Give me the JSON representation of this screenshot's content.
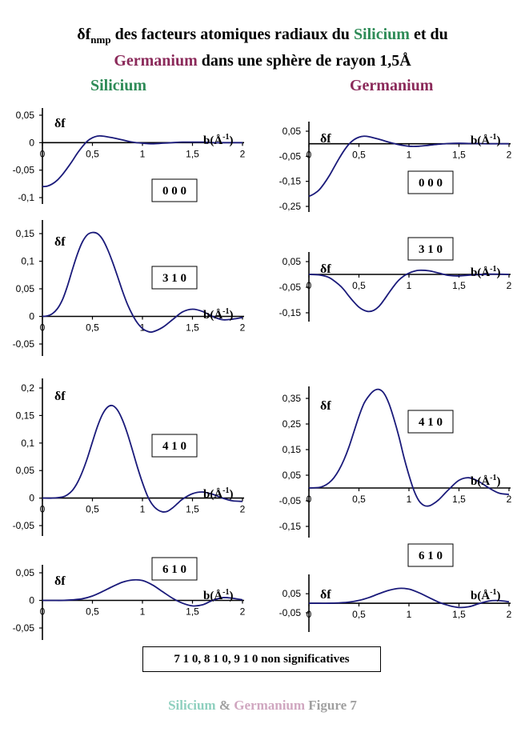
{
  "title": {
    "prefix": "δf",
    "subscript": "nmp",
    "part1": " des facteurs atomiques radiaux du ",
    "silicium": "Silicium",
    "part2": "  et du",
    "germanium": "Germanium",
    "part3": " dans une sphère de rayon 1,5Å"
  },
  "columns": {
    "left": "Silicium",
    "right": "Germanium"
  },
  "colors": {
    "curve": "#1a1a7a",
    "silicium": "#2e8b57",
    "germanium": "#8b2a5a"
  },
  "chart_data": [
    {
      "type": "line",
      "element": "Silicium",
      "label": "0 0 0",
      "ylabel": "δf",
      "xlabel_base": "b(Å",
      "xlabel_sup": "-1",
      "xlabel_end": ")",
      "xlim": [
        0,
        2
      ],
      "ylim": [
        -0.1,
        0.05
      ],
      "y_ticks": [
        0.05,
        0,
        -0.05,
        -0.1
      ],
      "y_tick_labels": [
        "0,05",
        "0",
        "-0,05",
        "-0,1"
      ],
      "x_ticks": [
        0,
        0.5,
        1,
        1.5,
        2
      ],
      "x_tick_labels": [
        "0",
        "0,5",
        "1",
        "1,5",
        "2"
      ],
      "x": [
        0,
        0.05,
        0.1,
        0.15,
        0.2,
        0.25,
        0.3,
        0.35,
        0.4,
        0.45,
        0.5,
        0.55,
        0.6,
        0.7,
        0.8,
        0.9,
        1.0,
        1.1,
        1.2,
        1.3,
        1.4,
        1.5,
        1.6,
        1.7,
        1.8,
        1.9,
        2.0
      ],
      "y": [
        -0.08,
        -0.079,
        -0.075,
        -0.068,
        -0.058,
        -0.046,
        -0.033,
        -0.019,
        -0.007,
        0.003,
        0.009,
        0.012,
        0.012,
        0.009,
        0.005,
        0.001,
        -0.001,
        -0.002,
        -0.001,
        0.0,
        0.001,
        0.001,
        0.001,
        0.0,
        0.0,
        0.0,
        0.0
      ]
    },
    {
      "type": "line",
      "element": "Silicium",
      "label": "3 1 0",
      "ylabel": "δf",
      "xlabel_base": "b(Å",
      "xlabel_sup": "-1",
      "xlabel_end": ")",
      "xlim": [
        0,
        2
      ],
      "ylim": [
        -0.05,
        0.15
      ],
      "y_ticks": [
        0.15,
        0.1,
        0.05,
        0,
        -0.05
      ],
      "y_tick_labels": [
        "0,15",
        "0,1",
        "0,05",
        "0",
        "-0,05"
      ],
      "x_ticks": [
        0,
        0.5,
        1,
        1.5,
        2
      ],
      "x_tick_labels": [
        "0",
        "0,5",
        "1",
        "1,5",
        "2"
      ],
      "x": [
        0,
        0.05,
        0.1,
        0.15,
        0.2,
        0.25,
        0.3,
        0.35,
        0.4,
        0.45,
        0.5,
        0.55,
        0.6,
        0.65,
        0.7,
        0.75,
        0.8,
        0.85,
        0.9,
        0.95,
        1.0,
        1.05,
        1.1,
        1.2,
        1.3,
        1.4,
        1.5,
        1.6,
        1.7,
        1.8,
        1.9,
        2.0
      ],
      "y": [
        0,
        0.001,
        0.005,
        0.014,
        0.03,
        0.055,
        0.085,
        0.113,
        0.135,
        0.148,
        0.152,
        0.15,
        0.14,
        0.122,
        0.099,
        0.073,
        0.046,
        0.022,
        0.003,
        -0.012,
        -0.022,
        -0.027,
        -0.028,
        -0.02,
        -0.006,
        0.008,
        0.013,
        0.009,
        0.0,
        -0.006,
        -0.005,
        -0.002
      ]
    },
    {
      "type": "line",
      "element": "Silicium",
      "label": "4 1 0",
      "ylabel": "δf",
      "xlabel_base": "b(Å",
      "xlabel_sup": "-1",
      "xlabel_end": ")",
      "xlim": [
        0,
        2
      ],
      "ylim": [
        -0.05,
        0.2
      ],
      "y_ticks": [
        0.2,
        0.15,
        0.1,
        0.05,
        0,
        -0.05
      ],
      "y_tick_labels": [
        "0,2",
        "0,15",
        "0,1",
        "0,05",
        "0",
        "-0,05"
      ],
      "x_ticks": [
        0,
        0.5,
        1,
        1.5,
        2
      ],
      "x_tick_labels": [
        "0",
        "0,5",
        "1",
        "1,5",
        "2"
      ],
      "x": [
        0,
        0.1,
        0.2,
        0.25,
        0.3,
        0.35,
        0.4,
        0.45,
        0.5,
        0.55,
        0.6,
        0.65,
        0.7,
        0.75,
        0.8,
        0.85,
        0.9,
        0.95,
        1.0,
        1.05,
        1.1,
        1.15,
        1.2,
        1.25,
        1.3,
        1.35,
        1.4,
        1.5,
        1.6,
        1.7,
        1.8,
        1.9,
        2.0
      ],
      "y": [
        0,
        0.0,
        0.002,
        0.006,
        0.014,
        0.028,
        0.048,
        0.073,
        0.102,
        0.13,
        0.152,
        0.165,
        0.168,
        0.16,
        0.142,
        0.117,
        0.087,
        0.056,
        0.028,
        0.004,
        -0.012,
        -0.021,
        -0.025,
        -0.024,
        -0.018,
        -0.01,
        -0.002,
        0.008,
        0.011,
        0.007,
        0.0,
        -0.005,
        -0.006
      ]
    },
    {
      "type": "line",
      "element": "Silicium",
      "label": "6 1 0",
      "ylabel": "δf",
      "xlabel_base": "b(Å",
      "xlabel_sup": "-1",
      "xlabel_end": ")",
      "xlim": [
        0,
        2
      ],
      "ylim": [
        -0.05,
        0.05
      ],
      "y_ticks": [
        0.05,
        0,
        -0.05
      ],
      "y_tick_labels": [
        "0,05",
        "0",
        "-0,05"
      ],
      "x_ticks": [
        0,
        0.5,
        1,
        1.5,
        2
      ],
      "x_tick_labels": [
        "0",
        "0,5",
        "1",
        "1,5",
        "2"
      ],
      "x": [
        0,
        0.1,
        0.2,
        0.3,
        0.4,
        0.5,
        0.6,
        0.7,
        0.8,
        0.9,
        1.0,
        1.1,
        1.2,
        1.3,
        1.4,
        1.5,
        1.6,
        1.7,
        1.8,
        1.9,
        2.0
      ],
      "y": [
        0,
        0.0,
        0.0,
        0.001,
        0.003,
        0.008,
        0.016,
        0.025,
        0.033,
        0.037,
        0.036,
        0.028,
        0.016,
        0.004,
        -0.005,
        -0.01,
        -0.008,
        0.0,
        0.005,
        0.004,
        0.001
      ]
    },
    {
      "type": "line",
      "element": "Germanium",
      "label": "0 0 0",
      "ylabel": "δf",
      "xlabel_base": "b(Å",
      "xlabel_sup": "-1",
      "xlabel_end": ")",
      "xlim": [
        0,
        2
      ],
      "ylim": [
        -0.25,
        0.05
      ],
      "y_ticks": [
        0.05,
        -0.05,
        -0.15,
        -0.25
      ],
      "y_tick_labels": [
        "0,05",
        "-0,05",
        "-0,15",
        "-0,25"
      ],
      "x_ticks": [
        0,
        0.5,
        1,
        1.5,
        2
      ],
      "x_tick_labels": [
        "0",
        "0,5",
        "1",
        "1,5",
        "2"
      ],
      "x": [
        0,
        0.05,
        0.1,
        0.15,
        0.2,
        0.25,
        0.3,
        0.35,
        0.4,
        0.45,
        0.5,
        0.55,
        0.6,
        0.7,
        0.8,
        0.9,
        1.0,
        1.1,
        1.2,
        1.3,
        1.4,
        1.5,
        1.6,
        1.8,
        2.0
      ],
      "y": [
        -0.21,
        -0.2,
        -0.185,
        -0.16,
        -0.13,
        -0.095,
        -0.06,
        -0.028,
        -0.002,
        0.016,
        0.026,
        0.03,
        0.028,
        0.018,
        0.006,
        -0.004,
        -0.01,
        -0.01,
        -0.006,
        -0.002,
        0.001,
        0.002,
        0.001,
        0.0,
        0.0
      ]
    },
    {
      "type": "line",
      "element": "Germanium",
      "label": "3 1 0",
      "ylabel": "δf",
      "xlabel_base": "b(Å",
      "xlabel_sup": "-1",
      "xlabel_end": ")",
      "xlim": [
        0,
        2
      ],
      "ylim": [
        -0.15,
        0.05
      ],
      "y_ticks": [
        0.05,
        -0.05,
        -0.15
      ],
      "y_tick_labels": [
        "0,05",
        "-0,05",
        "-0,15"
      ],
      "x_ticks": [
        0,
        0.5,
        1,
        1.5,
        2
      ],
      "x_tick_labels": [
        "0",
        "0,5",
        "1",
        "1,5",
        "2"
      ],
      "x": [
        0,
        0.1,
        0.2,
        0.3,
        0.35,
        0.4,
        0.45,
        0.5,
        0.55,
        0.6,
        0.65,
        0.7,
        0.75,
        0.8,
        0.85,
        0.9,
        0.95,
        1.0,
        1.05,
        1.1,
        1.2,
        1.3,
        1.4,
        1.5,
        1.6,
        1.8,
        2.0
      ],
      "y": [
        0,
        -0.002,
        -0.012,
        -0.04,
        -0.06,
        -0.085,
        -0.108,
        -0.128,
        -0.14,
        -0.145,
        -0.14,
        -0.125,
        -0.1,
        -0.072,
        -0.045,
        -0.022,
        -0.006,
        0.005,
        0.012,
        0.016,
        0.014,
        0.005,
        -0.004,
        -0.006,
        -0.003,
        0.001,
        0.0
      ]
    },
    {
      "type": "line",
      "element": "Germanium",
      "label": "4 1 0",
      "ylabel": "δf",
      "xlabel_base": "b(Å",
      "xlabel_sup": "-1",
      "xlabel_end": ")",
      "xlim": [
        0,
        2
      ],
      "ylim": [
        -0.15,
        0.35
      ],
      "y_ticks": [
        0.35,
        0.25,
        0.15,
        0.05,
        -0.05,
        -0.15
      ],
      "y_tick_labels": [
        "0,35",
        "0,25",
        "0,15",
        "0,05",
        "-0,05",
        "-0,15"
      ],
      "x_ticks": [
        0,
        0.5,
        1,
        1.5,
        2
      ],
      "x_tick_labels": [
        "0",
        "0,5",
        "1",
        "1,5",
        "2"
      ],
      "x": [
        0,
        0.1,
        0.15,
        0.2,
        0.25,
        0.3,
        0.35,
        0.4,
        0.45,
        0.5,
        0.55,
        0.6,
        0.65,
        0.7,
        0.75,
        0.8,
        0.85,
        0.9,
        0.95,
        1.0,
        1.05,
        1.1,
        1.15,
        1.2,
        1.25,
        1.3,
        1.35,
        1.4,
        1.5,
        1.6,
        1.7,
        1.8,
        1.9,
        2.0
      ],
      "y": [
        0,
        0.002,
        0.008,
        0.02,
        0.04,
        0.07,
        0.11,
        0.16,
        0.22,
        0.28,
        0.33,
        0.36,
        0.38,
        0.385,
        0.37,
        0.33,
        0.27,
        0.2,
        0.12,
        0.05,
        -0.01,
        -0.05,
        -0.068,
        -0.07,
        -0.06,
        -0.045,
        -0.025,
        -0.005,
        0.03,
        0.04,
        0.025,
        0.0,
        -0.02,
        -0.025
      ]
    },
    {
      "type": "line",
      "element": "Germanium",
      "label": "6 1 0",
      "ylabel": "δf",
      "xlabel_base": "b(Å",
      "xlabel_sup": "-1",
      "xlabel_end": ")",
      "xlim": [
        0,
        2
      ],
      "ylim": [
        -0.05,
        0.08
      ],
      "y_ticks": [
        0.05,
        -0.05
      ],
      "y_tick_labels": [
        "0,05",
        "-0,05"
      ],
      "x_ticks": [
        0,
        0.5,
        1,
        1.5,
        2
      ],
      "x_tick_labels": [
        "0",
        "0,5",
        "1",
        "1,5",
        "2"
      ],
      "x": [
        0,
        0.1,
        0.2,
        0.3,
        0.4,
        0.5,
        0.6,
        0.7,
        0.8,
        0.9,
        1.0,
        1.1,
        1.2,
        1.3,
        1.4,
        1.5,
        1.6,
        1.7,
        1.8,
        1.9,
        2.0
      ],
      "y": [
        0,
        0.0,
        0.0,
        0.002,
        0.006,
        0.015,
        0.03,
        0.05,
        0.068,
        0.078,
        0.074,
        0.055,
        0.03,
        0.005,
        -0.012,
        -0.022,
        -0.018,
        -0.002,
        0.012,
        0.014,
        0.008
      ]
    }
  ],
  "note": "7 1 0,   8 1 0,   9 1 0   non significatives",
  "caption": {
    "silicium": "Silicium",
    "amp": " & ",
    "germanium": "Germanium",
    "figure": " Figure 7"
  }
}
